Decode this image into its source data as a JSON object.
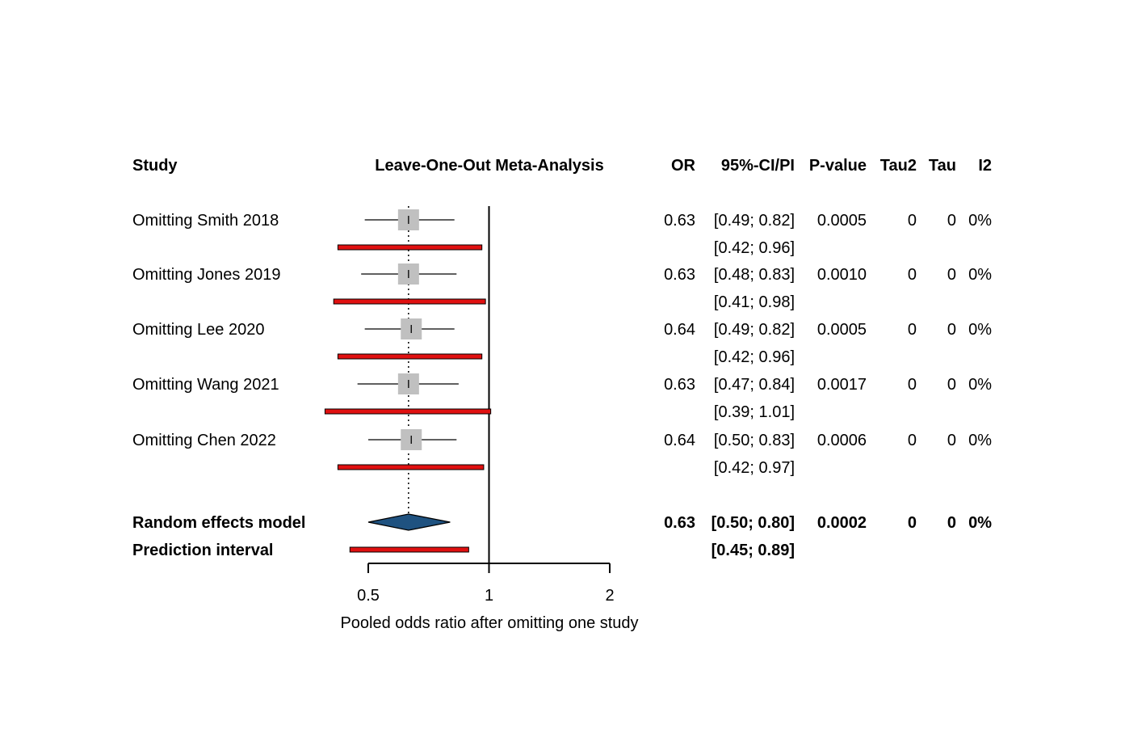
{
  "chart_data": {
    "type": "forest",
    "title": "Leave-One-Out Meta-Analysis",
    "xlabel": "Pooled odds ratio after omitting one study",
    "x_scale": "log",
    "xlim": [
      0.5,
      2
    ],
    "x_ticks": [
      0.5,
      1,
      2
    ],
    "x_tick_labels": [
      "0.5",
      "1",
      "2"
    ],
    "reference_line": 1,
    "pooled_line": 0.63,
    "colors": {
      "square": "#c0c0c0",
      "prediction_bar": "#e01010",
      "diamond": "#1f5280",
      "outline": "#000000"
    },
    "columns": {
      "study": "Study",
      "or": "OR",
      "ci": "95%-CI/PI",
      "pvalue": "P-value",
      "tau2": "Tau2",
      "tau": "Tau",
      "i2": "I2"
    },
    "studies": [
      {
        "label": "Omitting Smith 2018",
        "or": 0.63,
        "ci_low": 0.49,
        "ci_high": 0.82,
        "pi_low": 0.42,
        "pi_high": 0.96,
        "or_text": "0.63",
        "ci_text": "[0.49; 0.82]",
        "pi_text": "[0.42; 0.96]",
        "pvalue": "0.0005",
        "tau2": "0",
        "tau": "0",
        "i2": "0%"
      },
      {
        "label": "Omitting Jones 2019",
        "or": 0.63,
        "ci_low": 0.48,
        "ci_high": 0.83,
        "pi_low": 0.41,
        "pi_high": 0.98,
        "or_text": "0.63",
        "ci_text": "[0.48; 0.83]",
        "pi_text": "[0.41; 0.98]",
        "pvalue": "0.0010",
        "tau2": "0",
        "tau": "0",
        "i2": "0%"
      },
      {
        "label": "Omitting Lee 2020",
        "or": 0.64,
        "ci_low": 0.49,
        "ci_high": 0.82,
        "pi_low": 0.42,
        "pi_high": 0.96,
        "or_text": "0.64",
        "ci_text": "[0.49; 0.82]",
        "pi_text": "[0.42; 0.96]",
        "pvalue": "0.0005",
        "tau2": "0",
        "tau": "0",
        "i2": "0%"
      },
      {
        "label": "Omitting Wang 2021",
        "or": 0.63,
        "ci_low": 0.47,
        "ci_high": 0.84,
        "pi_low": 0.39,
        "pi_high": 1.01,
        "or_text": "0.63",
        "ci_text": "[0.47; 0.84]",
        "pi_text": "[0.39; 1.01]",
        "pvalue": "0.0017",
        "tau2": "0",
        "tau": "0",
        "i2": "0%"
      },
      {
        "label": "Omitting Chen 2022",
        "or": 0.64,
        "ci_low": 0.5,
        "ci_high": 0.83,
        "pi_low": 0.42,
        "pi_high": 0.97,
        "or_text": "0.64",
        "ci_text": "[0.50; 0.83]",
        "pi_text": "[0.42; 0.97]",
        "pvalue": "0.0006",
        "tau2": "0",
        "tau": "0",
        "i2": "0%"
      }
    ],
    "pooled": {
      "label": "Random effects model",
      "or": 0.63,
      "ci_low": 0.5,
      "ci_high": 0.8,
      "or_text": "0.63",
      "ci_text": "[0.50; 0.80]",
      "pvalue": "0.0002",
      "tau2": "0",
      "tau": "0",
      "i2": "0%"
    },
    "prediction": {
      "label": "Prediction interval",
      "pi_low": 0.45,
      "pi_high": 0.89,
      "pi_text": "[0.45; 0.89]"
    }
  }
}
